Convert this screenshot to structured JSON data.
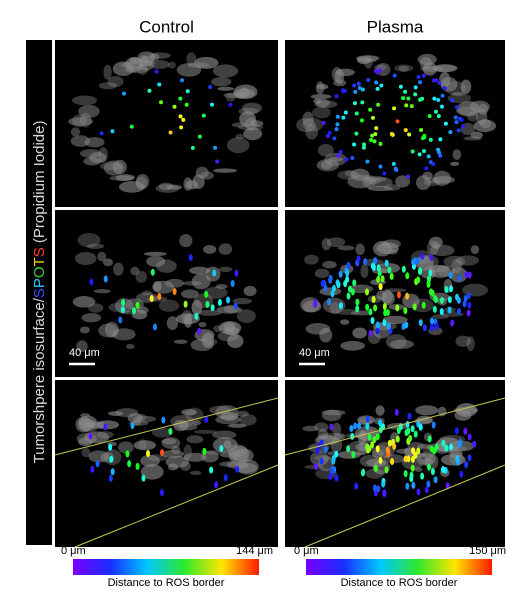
{
  "row_label": {
    "parts": [
      {
        "text": "Tumorshpere isosurface/",
        "color": "#d9d9d9"
      },
      {
        "text": "S",
        "color": "#3a4cff"
      },
      {
        "text": "P",
        "color": "#2ec8ff"
      },
      {
        "text": "O",
        "color": "#39d23a"
      },
      {
        "text": "T",
        "color": "#f0d020"
      },
      {
        "text": "S",
        "color": "#ff3a2a"
      },
      {
        "text": " (Propidium Iodide)",
        "color": "#d9d9d9"
      }
    ]
  },
  "columns": [
    {
      "title": "Control",
      "scale_bar": "40 μm",
      "colorbar": {
        "min_label": "0 μm",
        "max_label": "144 μm",
        "title": "Distance to ROS border"
      }
    },
    {
      "title": "Plasma",
      "scale_bar": "40 μm",
      "colorbar": {
        "min_label": "0 μm",
        "max_label": "150 μm",
        "title": "Distance to ROS border"
      }
    }
  ]
}
